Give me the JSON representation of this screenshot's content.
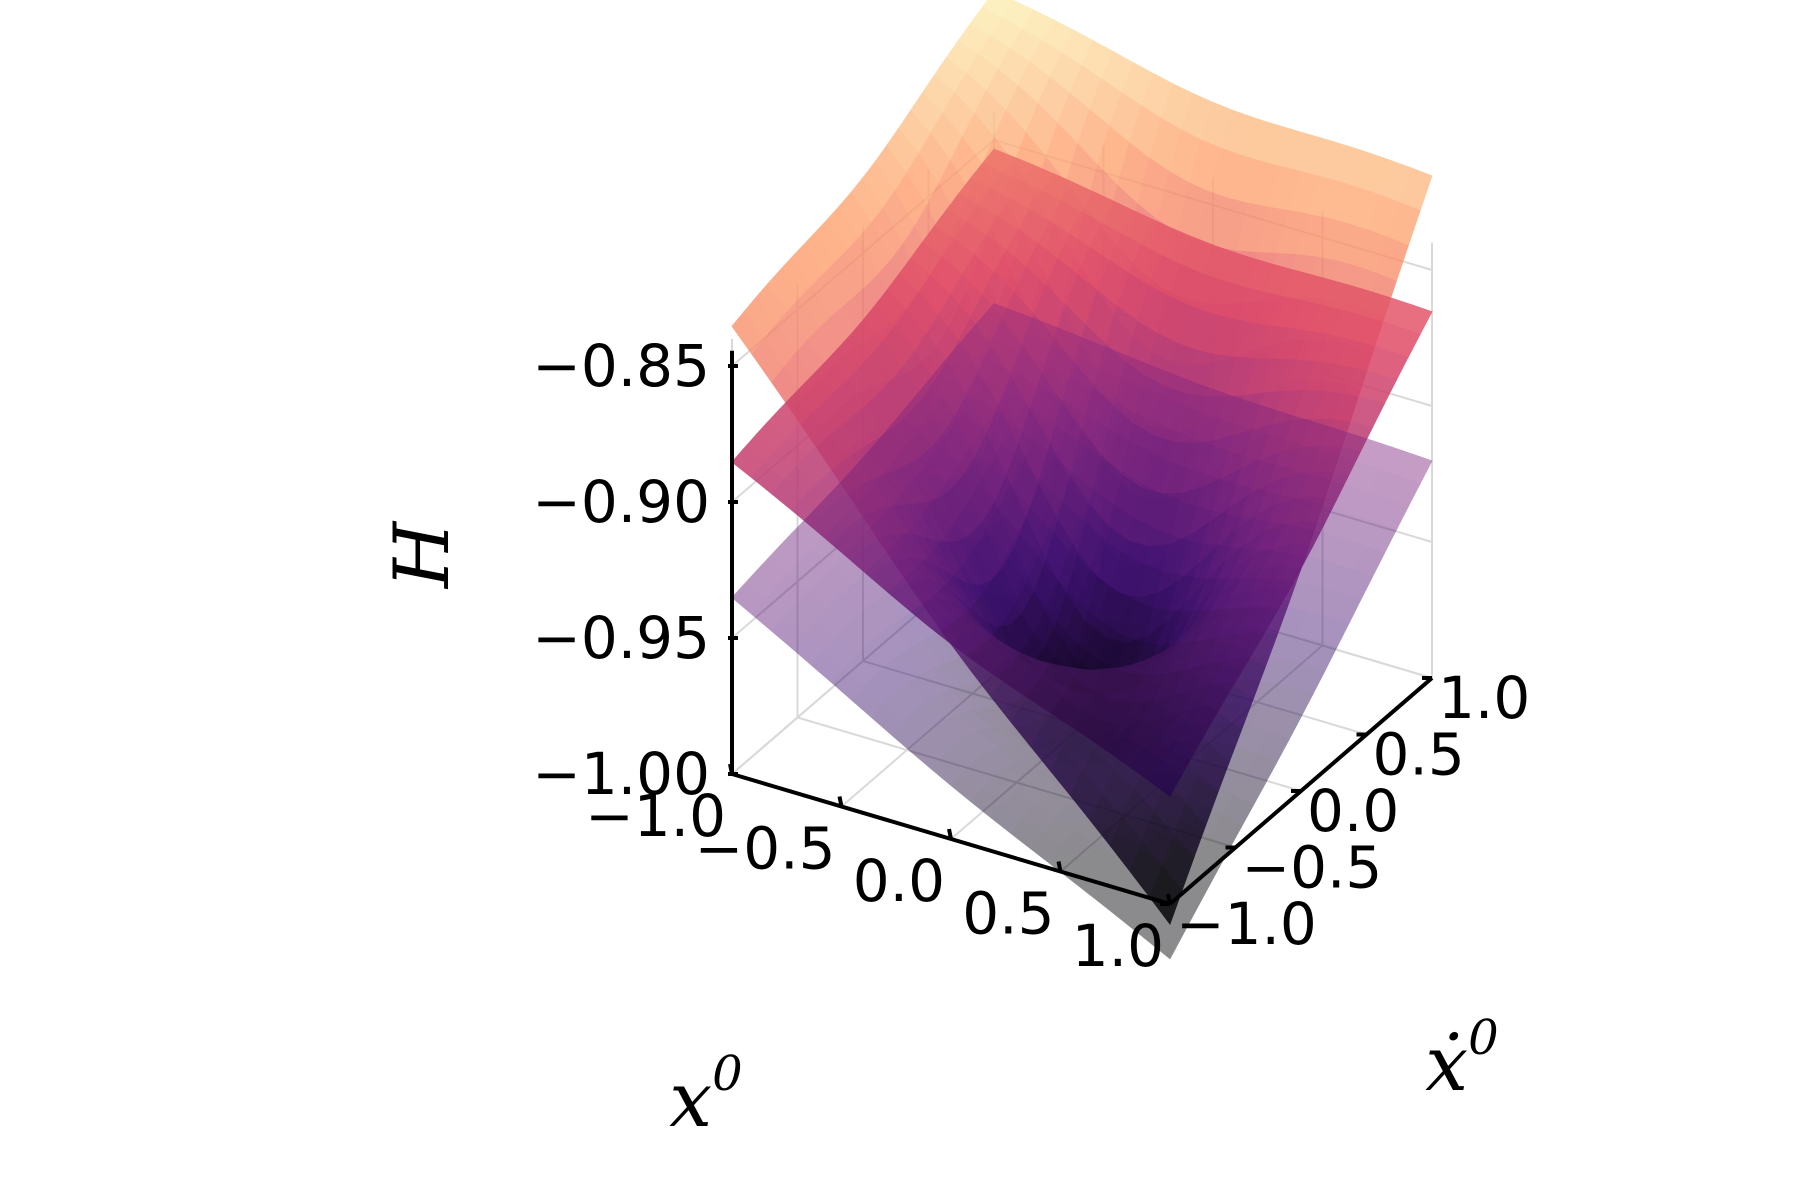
{
  "chart_data": {
    "type": "surface3d",
    "title": "",
    "xlabel": "x",
    "xlabel_superscript": "0",
    "ylabel": "ẋ",
    "ylabel_superscript": "0",
    "zlabel": "H",
    "xlim": [
      -1.0,
      1.0
    ],
    "ylim": [
      -1.0,
      1.0
    ],
    "zlim": [
      -1.0,
      -0.84
    ],
    "x_ticks": [
      "−1.0",
      "−0.5",
      "0.0",
      "0.5",
      "1.0"
    ],
    "y_ticks": [
      "−1.0",
      "−0.5",
      "0.0",
      "0.5",
      "1.0"
    ],
    "z_ticks": [
      "−1.00",
      "−0.95",
      "−0.90",
      "−0.85"
    ],
    "x_tick_values": [
      -1.0,
      -0.5,
      0.0,
      0.5,
      1.0
    ],
    "y_tick_values": [
      -1.0,
      -0.5,
      0.0,
      0.5,
      1.0
    ],
    "z_tick_values": [
      -1.0,
      -0.95,
      -0.9,
      -0.85
    ],
    "grid": true,
    "legend": "none",
    "colormap": "inferno",
    "colormap_stops": [
      "#000004",
      "#3b0f70",
      "#8c2981",
      "#de4968",
      "#fe9f6d",
      "#fcfdbf"
    ],
    "grid_color": "#d9d9d9",
    "series": [
      {
        "corners": {
          "x-1_y-1": -0.835,
          "x1_y-1": -1.007,
          "x-1_y1": -0.795,
          "x1_y1": -0.815
        },
        "center": -0.99,
        "opacity": 0.8
      },
      {
        "corners": {
          "x-1_y-1": -0.885,
          "x1_y-1": -0.96,
          "x-1_y1": -0.853,
          "x1_y1": -0.865
        },
        "center": -0.99,
        "opacity": 0.85
      },
      {
        "corners": {
          "x-1_y-1": -0.935,
          "x1_y-1": -1.02,
          "x-1_y1": -0.91,
          "x1_y1": -0.92
        },
        "center": -0.995,
        "opacity": 0.45
      }
    ]
  }
}
